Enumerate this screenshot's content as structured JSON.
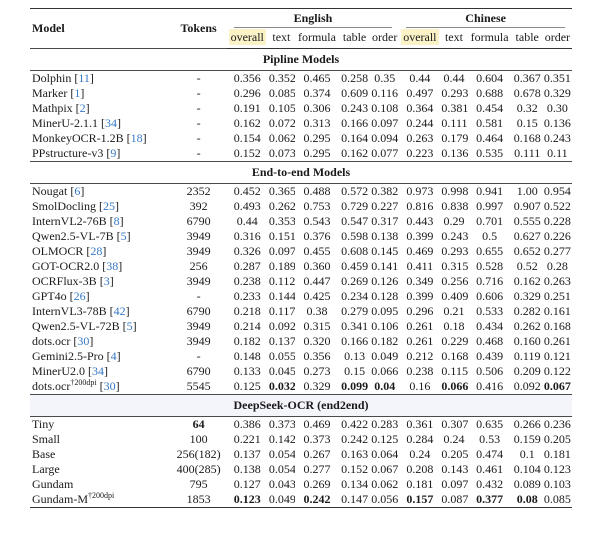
{
  "colors": {
    "highlight_yellow": "#FBF2C7",
    "section_band": "#F4F4FB",
    "citation_blue": "#3579C6",
    "rule_dark": "#333333"
  },
  "header": {
    "model": "Model",
    "tokens": "Tokens",
    "groups": [
      {
        "label": "English"
      },
      {
        "label": "Chinese"
      }
    ],
    "subcols": [
      "overall",
      "text",
      "formula",
      "table",
      "order"
    ]
  },
  "sections": [
    {
      "title": "Pipline Models",
      "highlighted": false,
      "rows": [
        {
          "model": "Dolphin",
          "sup": "",
          "ref": "11",
          "tokens": "-",
          "tokens_bold": false,
          "values": [
            "0.356",
            "0.352",
            "0.465",
            "0.258",
            "0.35",
            "0.44",
            "0.44",
            "0.604",
            "0.367",
            "0.351"
          ],
          "bold": [
            false,
            false,
            false,
            false,
            false,
            false,
            false,
            false,
            false,
            false
          ]
        },
        {
          "model": "Marker",
          "sup": "",
          "ref": "1",
          "tokens": "-",
          "tokens_bold": false,
          "values": [
            "0.296",
            "0.085",
            "0.374",
            "0.609",
            "0.116",
            "0.497",
            "0.293",
            "0.688",
            "0.678",
            "0.329"
          ],
          "bold": [
            false,
            false,
            false,
            false,
            false,
            false,
            false,
            false,
            false,
            false
          ]
        },
        {
          "model": "Mathpix",
          "sup": "",
          "ref": "2",
          "tokens": "-",
          "tokens_bold": false,
          "values": [
            "0.191",
            "0.105",
            "0.306",
            "0.243",
            "0.108",
            "0.364",
            "0.381",
            "0.454",
            "0.32",
            "0.30"
          ],
          "bold": [
            false,
            false,
            false,
            false,
            false,
            false,
            false,
            false,
            false,
            false
          ]
        },
        {
          "model": "MinerU-2.1.1",
          "sup": "",
          "ref": "34",
          "tokens": "-",
          "tokens_bold": false,
          "values": [
            "0.162",
            "0.072",
            "0.313",
            "0.166",
            "0.097",
            "0.244",
            "0.111",
            "0.581",
            "0.15",
            "0.136"
          ],
          "bold": [
            false,
            false,
            false,
            false,
            false,
            false,
            false,
            false,
            false,
            false
          ]
        },
        {
          "model": "MonkeyOCR-1.2B",
          "sup": "",
          "ref": "18",
          "tokens": "-",
          "tokens_bold": false,
          "values": [
            "0.154",
            "0.062",
            "0.295",
            "0.164",
            "0.094",
            "0.263",
            "0.179",
            "0.464",
            "0.168",
            "0.243"
          ],
          "bold": [
            false,
            false,
            false,
            false,
            false,
            false,
            false,
            false,
            false,
            false
          ]
        },
        {
          "model": "PPstructure-v3",
          "sup": "",
          "ref": "9",
          "tokens": "-",
          "tokens_bold": false,
          "values": [
            "0.152",
            "0.073",
            "0.295",
            "0.162",
            "0.077",
            "0.223",
            "0.136",
            "0.535",
            "0.111",
            "0.11"
          ],
          "bold": [
            false,
            false,
            false,
            false,
            false,
            false,
            false,
            false,
            false,
            false
          ]
        }
      ]
    },
    {
      "title": "End-to-end Models",
      "highlighted": false,
      "rows": [
        {
          "model": "Nougat",
          "sup": "",
          "ref": "6",
          "tokens": "2352",
          "tokens_bold": false,
          "values": [
            "0.452",
            "0.365",
            "0.488",
            "0.572",
            "0.382",
            "0.973",
            "0.998",
            "0.941",
            "1.00",
            "0.954"
          ],
          "bold": [
            false,
            false,
            false,
            false,
            false,
            false,
            false,
            false,
            false,
            false
          ]
        },
        {
          "model": "SmolDocling",
          "sup": "",
          "ref": "25",
          "tokens": "392",
          "tokens_bold": false,
          "values": [
            "0.493",
            "0.262",
            "0.753",
            "0.729",
            "0.227",
            "0.816",
            "0.838",
            "0.997",
            "0.907",
            "0.522"
          ],
          "bold": [
            false,
            false,
            false,
            false,
            false,
            false,
            false,
            false,
            false,
            false
          ]
        },
        {
          "model": "InternVL2-76B",
          "sup": "",
          "ref": "8",
          "tokens": "6790",
          "tokens_bold": false,
          "values": [
            "0.44",
            "0.353",
            "0.543",
            "0.547",
            "0.317",
            "0.443",
            "0.29",
            "0.701",
            "0.555",
            "0.228"
          ],
          "bold": [
            false,
            false,
            false,
            false,
            false,
            false,
            false,
            false,
            false,
            false
          ]
        },
        {
          "model": "Qwen2.5-VL-7B",
          "sup": "",
          "ref": "5",
          "tokens": "3949",
          "tokens_bold": false,
          "values": [
            "0.316",
            "0.151",
            "0.376",
            "0.598",
            "0.138",
            "0.399",
            "0.243",
            "0.5",
            "0.627",
            "0.226"
          ],
          "bold": [
            false,
            false,
            false,
            false,
            false,
            false,
            false,
            false,
            false,
            false
          ]
        },
        {
          "model": "OLMOCR",
          "sup": "",
          "ref": "28",
          "tokens": "3949",
          "tokens_bold": false,
          "values": [
            "0.326",
            "0.097",
            "0.455",
            "0.608",
            "0.145",
            "0.469",
            "0.293",
            "0.655",
            "0.652",
            "0.277"
          ],
          "bold": [
            false,
            false,
            false,
            false,
            false,
            false,
            false,
            false,
            false,
            false
          ]
        },
        {
          "model": "GOT-OCR2.0",
          "sup": "",
          "ref": "38",
          "tokens": "256",
          "tokens_bold": false,
          "values": [
            "0.287",
            "0.189",
            "0.360",
            "0.459",
            "0.141",
            "0.411",
            "0.315",
            "0.528",
            "0.52",
            "0.28"
          ],
          "bold": [
            false,
            false,
            false,
            false,
            false,
            false,
            false,
            false,
            false,
            false
          ]
        },
        {
          "model": "OCRFlux-3B",
          "sup": "",
          "ref": "3",
          "tokens": "3949",
          "tokens_bold": false,
          "values": [
            "0.238",
            "0.112",
            "0.447",
            "0.269",
            "0.126",
            "0.349",
            "0.256",
            "0.716",
            "0.162",
            "0.263"
          ],
          "bold": [
            false,
            false,
            false,
            false,
            false,
            false,
            false,
            false,
            false,
            false
          ]
        },
        {
          "model": "GPT4o",
          "sup": "",
          "ref": "26",
          "tokens": "-",
          "tokens_bold": false,
          "values": [
            "0.233",
            "0.144",
            "0.425",
            "0.234",
            "0.128",
            "0.399",
            "0.409",
            "0.606",
            "0.329",
            "0.251"
          ],
          "bold": [
            false,
            false,
            false,
            false,
            false,
            false,
            false,
            false,
            false,
            false
          ]
        },
        {
          "model": "InternVL3-78B",
          "sup": "",
          "ref": "42",
          "tokens": "6790",
          "tokens_bold": false,
          "values": [
            "0.218",
            "0.117",
            "0.38",
            "0.279",
            "0.095",
            "0.296",
            "0.21",
            "0.533",
            "0.282",
            "0.161"
          ],
          "bold": [
            false,
            false,
            false,
            false,
            false,
            false,
            false,
            false,
            false,
            false
          ]
        },
        {
          "model": "Qwen2.5-VL-72B",
          "sup": "",
          "ref": "5",
          "tokens": "3949",
          "tokens_bold": false,
          "values": [
            "0.214",
            "0.092",
            "0.315",
            "0.341",
            "0.106",
            "0.261",
            "0.18",
            "0.434",
            "0.262",
            "0.168"
          ],
          "bold": [
            false,
            false,
            false,
            false,
            false,
            false,
            false,
            false,
            false,
            false
          ]
        },
        {
          "model": "dots.ocr",
          "sup": "",
          "ref": "30",
          "tokens": "3949",
          "tokens_bold": false,
          "values": [
            "0.182",
            "0.137",
            "0.320",
            "0.166",
            "0.182",
            "0.261",
            "0.229",
            "0.468",
            "0.160",
            "0.261"
          ],
          "bold": [
            false,
            false,
            false,
            false,
            false,
            false,
            false,
            false,
            false,
            false
          ]
        },
        {
          "model": "Gemini2.5-Pro",
          "sup": "",
          "ref": "4",
          "tokens": "-",
          "tokens_bold": false,
          "values": [
            "0.148",
            "0.055",
            "0.356",
            "0.13",
            "0.049",
            "0.212",
            "0.168",
            "0.439",
            "0.119",
            "0.121"
          ],
          "bold": [
            false,
            false,
            false,
            false,
            false,
            false,
            false,
            false,
            false,
            false
          ]
        },
        {
          "model": "MinerU2.0",
          "sup": "",
          "ref": "34",
          "tokens": "6790",
          "tokens_bold": false,
          "values": [
            "0.133",
            "0.045",
            "0.273",
            "0.15",
            "0.066",
            "0.238",
            "0.115",
            "0.506",
            "0.209",
            "0.122"
          ],
          "bold": [
            false,
            false,
            false,
            false,
            false,
            false,
            false,
            false,
            false,
            false
          ]
        },
        {
          "model": "dots.ocr",
          "sup": "†200dpi",
          "ref": "30",
          "tokens": "5545",
          "tokens_bold": false,
          "values": [
            "0.125",
            "0.032",
            "0.329",
            "0.099",
            "0.04",
            "0.16",
            "0.066",
            "0.416",
            "0.092",
            "0.067"
          ],
          "bold": [
            false,
            true,
            false,
            true,
            true,
            false,
            true,
            false,
            false,
            true
          ]
        }
      ]
    },
    {
      "title": "DeepSeek-OCR (end2end)",
      "highlighted": true,
      "rows": [
        {
          "model": "Tiny",
          "sup": "",
          "ref": "",
          "tokens": "64",
          "tokens_bold": true,
          "values": [
            "0.386",
            "0.373",
            "0.469",
            "0.422",
            "0.283",
            "0.361",
            "0.307",
            "0.635",
            "0.266",
            "0.236"
          ],
          "bold": [
            false,
            false,
            false,
            false,
            false,
            false,
            false,
            false,
            false,
            false
          ]
        },
        {
          "model": "Small",
          "sup": "",
          "ref": "",
          "tokens": "100",
          "tokens_bold": false,
          "values": [
            "0.221",
            "0.142",
            "0.373",
            "0.242",
            "0.125",
            "0.284",
            "0.24",
            "0.53",
            "0.159",
            "0.205"
          ],
          "bold": [
            false,
            false,
            false,
            false,
            false,
            false,
            false,
            false,
            false,
            false
          ]
        },
        {
          "model": "Base",
          "sup": "",
          "ref": "",
          "tokens": "256(182)",
          "tokens_bold": false,
          "values": [
            "0.137",
            "0.054",
            "0.267",
            "0.163",
            "0.064",
            "0.24",
            "0.205",
            "0.474",
            "0.1",
            "0.181"
          ],
          "bold": [
            false,
            false,
            false,
            false,
            false,
            false,
            false,
            false,
            false,
            false
          ]
        },
        {
          "model": "Large",
          "sup": "",
          "ref": "",
          "tokens": "400(285)",
          "tokens_bold": false,
          "values": [
            "0.138",
            "0.054",
            "0.277",
            "0.152",
            "0.067",
            "0.208",
            "0.143",
            "0.461",
            "0.104",
            "0.123"
          ],
          "bold": [
            false,
            false,
            false,
            false,
            false,
            false,
            false,
            false,
            false,
            false
          ]
        },
        {
          "model": "Gundam",
          "sup": "",
          "ref": "",
          "tokens": "795",
          "tokens_bold": false,
          "values": [
            "0.127",
            "0.043",
            "0.269",
            "0.134",
            "0.062",
            "0.181",
            "0.097",
            "0.432",
            "0.089",
            "0.103"
          ],
          "bold": [
            false,
            false,
            false,
            false,
            false,
            false,
            false,
            false,
            false,
            false
          ]
        },
        {
          "model": "Gundam-M",
          "sup": "†200dpi",
          "ref": "",
          "tokens": "1853",
          "tokens_bold": false,
          "values": [
            "0.123",
            "0.049",
            "0.242",
            "0.147",
            "0.056",
            "0.157",
            "0.087",
            "0.377",
            "0.08",
            "0.085"
          ],
          "bold": [
            true,
            false,
            true,
            false,
            false,
            true,
            false,
            true,
            true,
            false
          ]
        }
      ]
    }
  ]
}
